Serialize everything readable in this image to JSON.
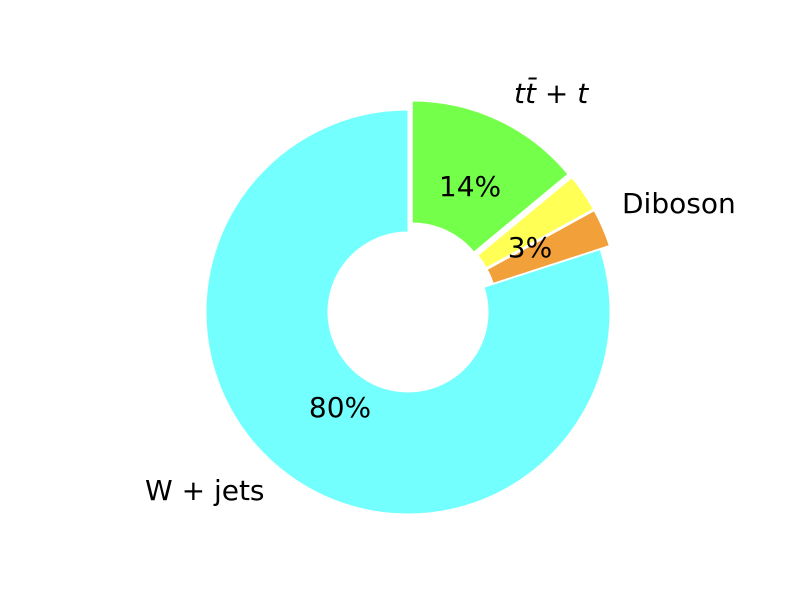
{
  "chart_data": {
    "type": "pie",
    "style": "donut",
    "start_angle_deg": 90,
    "direction": "clockwise",
    "slices": [
      {
        "label": "tt̄ + t",
        "value": 14,
        "pct_label": "14%",
        "color": "#74ff4a",
        "exploded": true
      },
      {
        "label": "",
        "value": 3,
        "pct_label": "",
        "color": "#ffff55",
        "exploded": true
      },
      {
        "label": "Diboson",
        "value": 3,
        "pct_label": "3%",
        "color": "#f2a03a",
        "exploded": true
      },
      {
        "label": "W + jets",
        "value": 80,
        "pct_label": "80%",
        "color": "#74ffff",
        "exploded": false
      }
    ]
  }
}
